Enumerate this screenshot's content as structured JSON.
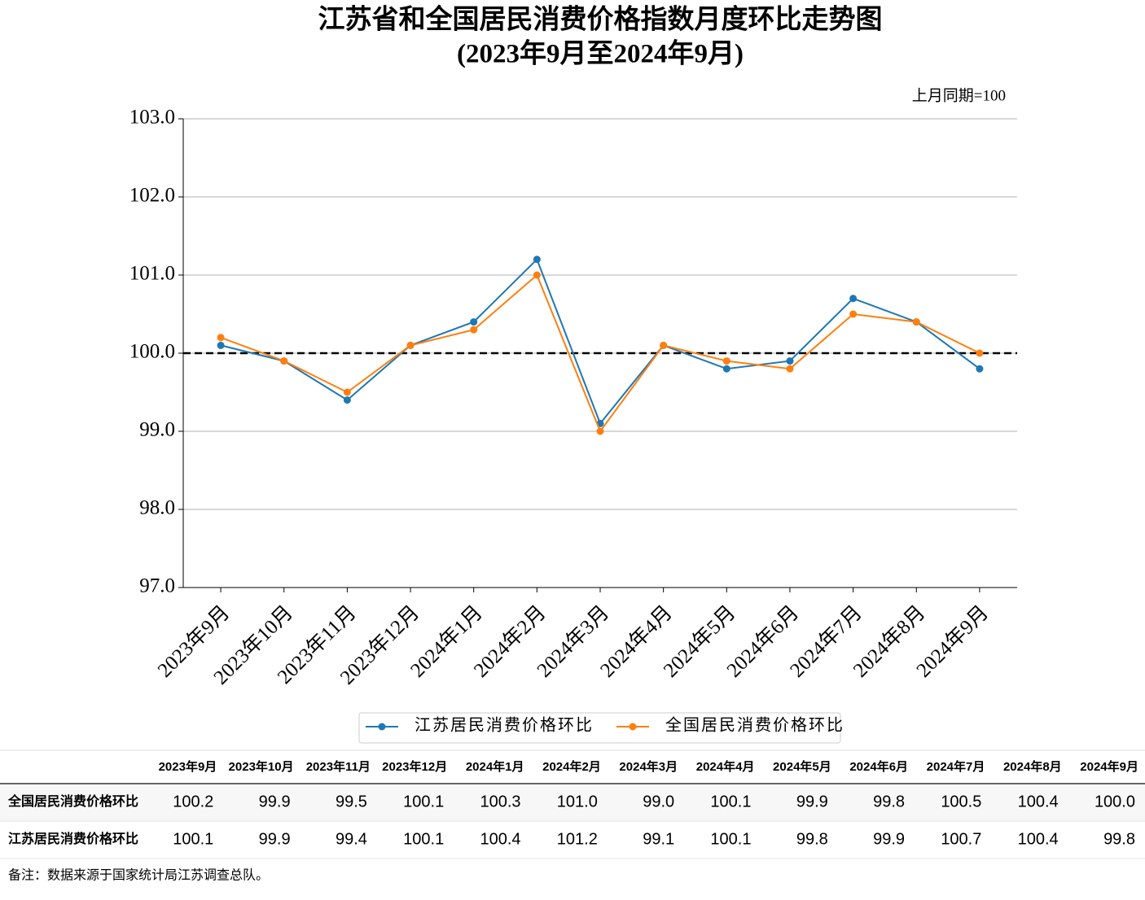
{
  "chart_data": {
    "type": "line",
    "title": "江苏省和全国居民消费价格指数月度环比走势图",
    "subtitle": "(2023年9月至2024年9月)",
    "annotation": "上月同期=100",
    "categories": [
      "2023年9月",
      "2023年10月",
      "2023年11月",
      "2023年12月",
      "2024年1月",
      "2024年2月",
      "2024年3月",
      "2024年4月",
      "2024年5月",
      "2024年6月",
      "2024年7月",
      "2024年8月",
      "2024年9月"
    ],
    "series": [
      {
        "name": "江苏居民消费价格环比",
        "color": "#1f77b4",
        "values": [
          100.1,
          99.9,
          99.4,
          100.1,
          100.4,
          101.2,
          99.1,
          100.1,
          99.8,
          99.9,
          100.7,
          100.4,
          99.8
        ]
      },
      {
        "name": "全国居民消费价格环比",
        "color": "#ff7f0e",
        "values": [
          100.2,
          99.9,
          99.5,
          100.1,
          100.3,
          101.0,
          99.0,
          100.1,
          99.9,
          99.8,
          100.5,
          100.4,
          100.0
        ]
      }
    ],
    "ylim": [
      97,
      103
    ],
    "yticks": [
      {
        "value": 97,
        "label": "97.0"
      },
      {
        "value": 98,
        "label": "98.0"
      },
      {
        "value": 99,
        "label": "99.0"
      },
      {
        "value": 100,
        "label": "100.0"
      },
      {
        "value": 101,
        "label": "101.0"
      },
      {
        "value": 102,
        "label": "102.0"
      },
      {
        "value": 103,
        "label": "103.0"
      }
    ],
    "reference_line": 100,
    "grid": true,
    "legend": "bottom"
  },
  "table": {
    "columns": [
      "2023年9月",
      "2023年10月",
      "2023年11月",
      "2023年12月",
      "2024年1月",
      "2024年2月",
      "2024年3月",
      "2024年4月",
      "2024年5月",
      "2024年6月",
      "2024年7月",
      "2024年8月",
      "2024年9月"
    ],
    "rows": [
      {
        "label": "全国居民消费价格环比",
        "cells": [
          "100.2",
          "99.9",
          "99.5",
          "100.1",
          "100.3",
          "101.0",
          "99.0",
          "100.1",
          "99.9",
          "99.8",
          "100.5",
          "100.4",
          "100.0"
        ]
      },
      {
        "label": "江苏居民消费价格环比",
        "cells": [
          "100.1",
          "99.9",
          "99.4",
          "100.1",
          "100.4",
          "101.2",
          "99.1",
          "100.1",
          "99.8",
          "99.9",
          "100.7",
          "100.4",
          "99.8"
        ]
      }
    ]
  },
  "footnote": "备注：数据来源于国家统计局江苏调查总队。"
}
